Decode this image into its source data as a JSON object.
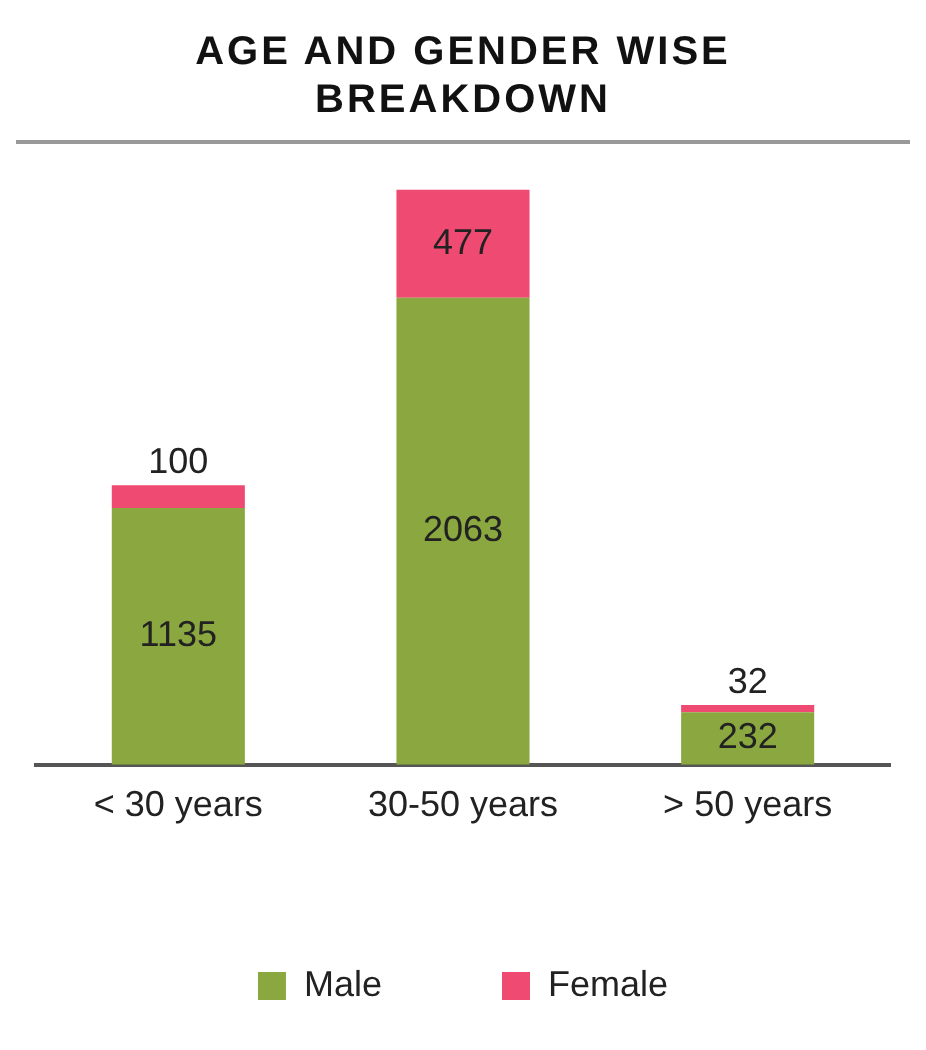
{
  "chart_data": {
    "type": "bar",
    "title": "AGE AND GENDER WISE BREAKDOWN",
    "categories": [
      "< 30 years",
      "30-50 years",
      "> 50 years"
    ],
    "stacked": true,
    "data_labels": true,
    "legend": "bottom",
    "grid": false,
    "series": [
      {
        "name": "Male",
        "color": "#8aa83f",
        "values": [
          1135,
          2063,
          232
        ]
      },
      {
        "name": "Female",
        "color": "#ef4b72",
        "values": [
          100,
          477,
          32
        ]
      }
    ]
  }
}
